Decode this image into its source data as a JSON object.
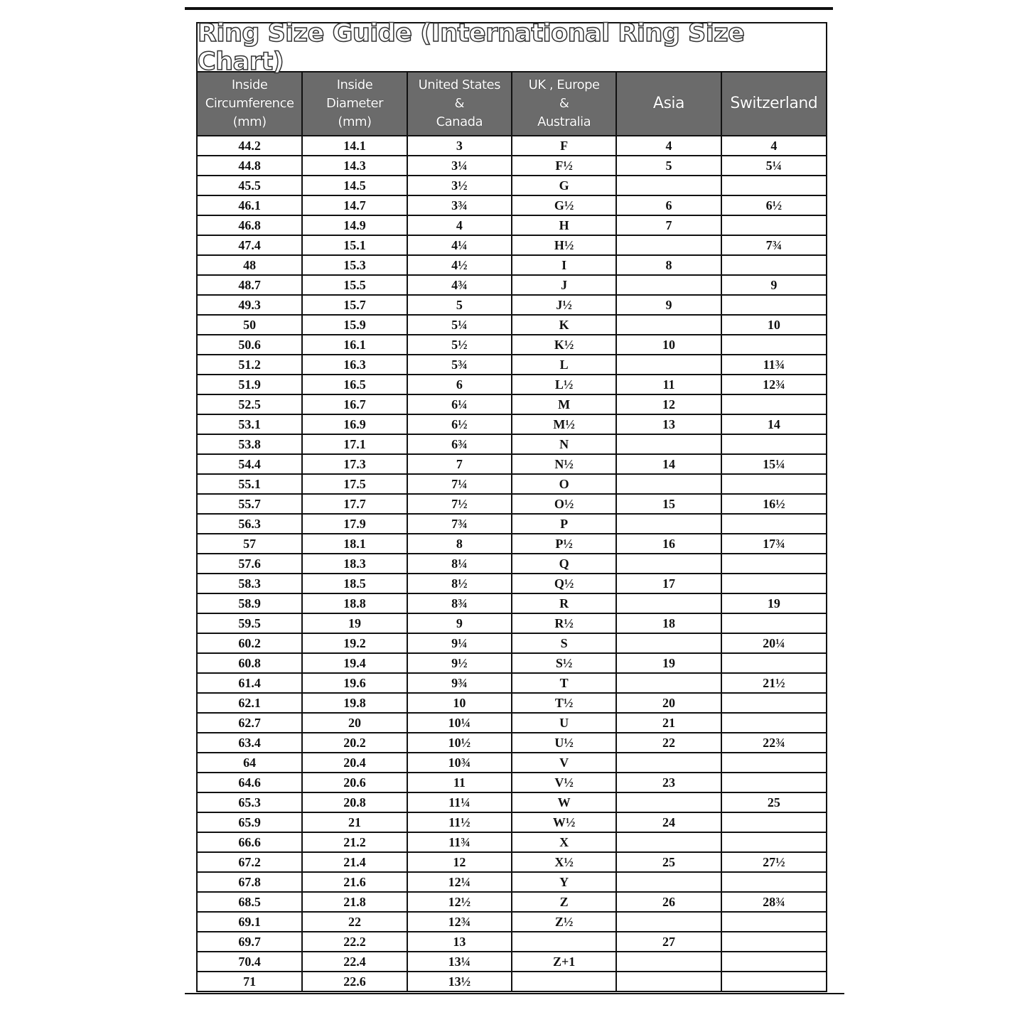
{
  "title": "Ring  Size  Guide (International Ring Size Chart)",
  "columns": [
    [
      "Inside",
      "Circumference",
      "(mm)"
    ],
    [
      "Inside",
      "Diameter",
      "(mm)"
    ],
    [
      "United States",
      "&",
      "Canada"
    ],
    [
      "UK , Europe",
      "&",
      "Australia"
    ],
    [
      "Asia"
    ],
    [
      "Switzerland"
    ]
  ],
  "rows": [
    [
      "44.2",
      "14.1",
      "3",
      "F",
      "4",
      "4"
    ],
    [
      "44.8",
      "14.3",
      "3¼",
      "F½",
      "5",
      "5¼"
    ],
    [
      "45.5",
      "14.5",
      "3½",
      "G",
      "",
      ""
    ],
    [
      "46.1",
      "14.7",
      "3¾",
      "G½",
      "6",
      "6½"
    ],
    [
      "46.8",
      "14.9",
      "4",
      "H",
      "7",
      ""
    ],
    [
      "47.4",
      "15.1",
      "4¼",
      "H½",
      "",
      "7¾"
    ],
    [
      "48",
      "15.3",
      "4½",
      "I",
      "8",
      ""
    ],
    [
      "48.7",
      "15.5",
      "4¾",
      "J",
      "",
      "9"
    ],
    [
      "49.3",
      "15.7",
      "5",
      "J½",
      "9",
      ""
    ],
    [
      "50",
      "15.9",
      "5¼",
      "K",
      "",
      "10"
    ],
    [
      "50.6",
      "16.1",
      "5½",
      "K½",
      "10",
      ""
    ],
    [
      "51.2",
      "16.3",
      "5¾",
      "L",
      "",
      "11¾"
    ],
    [
      "51.9",
      "16.5",
      "6",
      "L½",
      "11",
      "12¾"
    ],
    [
      "52.5",
      "16.7",
      "6¼",
      "M",
      "12",
      ""
    ],
    [
      "53.1",
      "16.9",
      "6½",
      "M½",
      "13",
      "14"
    ],
    [
      "53.8",
      "17.1",
      "6¾",
      "N",
      "",
      ""
    ],
    [
      "54.4",
      "17.3",
      "7",
      "N½",
      "14",
      "15¼"
    ],
    [
      "55.1",
      "17.5",
      "7¼",
      "O",
      "",
      ""
    ],
    [
      "55.7",
      "17.7",
      "7½",
      "O½",
      "15",
      "16½"
    ],
    [
      "56.3",
      "17.9",
      "7¾",
      "P",
      "",
      ""
    ],
    [
      "57",
      "18.1",
      "8",
      "P½",
      "16",
      "17¾"
    ],
    [
      "57.6",
      "18.3",
      "8¼",
      "Q",
      "",
      ""
    ],
    [
      "58.3",
      "18.5",
      "8½",
      "Q½",
      "17",
      ""
    ],
    [
      "58.9",
      "18.8",
      "8¾",
      "R",
      "",
      "19"
    ],
    [
      "59.5",
      "19",
      "9",
      "R½",
      "18",
      ""
    ],
    [
      "60.2",
      "19.2",
      "9¼",
      "S",
      "",
      "20¼"
    ],
    [
      "60.8",
      "19.4",
      "9½",
      "S½",
      "19",
      ""
    ],
    [
      "61.4",
      "19.6",
      "9¾",
      "T",
      "",
      "21½"
    ],
    [
      "62.1",
      "19.8",
      "10",
      "T½",
      "20",
      ""
    ],
    [
      "62.7",
      "20",
      "10¼",
      "U",
      "21",
      ""
    ],
    [
      "63.4",
      "20.2",
      "10½",
      "U½",
      "22",
      "22¾"
    ],
    [
      "64",
      "20.4",
      "10¾",
      "V",
      "",
      ""
    ],
    [
      "64.6",
      "20.6",
      "11",
      "V½",
      "23",
      ""
    ],
    [
      "65.3",
      "20.8",
      "11¼",
      "W",
      "",
      "25"
    ],
    [
      "65.9",
      "21",
      "11½",
      "W½",
      "24",
      ""
    ],
    [
      "66.6",
      "21.2",
      "11¾",
      "X",
      "",
      ""
    ],
    [
      "67.2",
      "21.4",
      "12",
      "X½",
      "25",
      "27½"
    ],
    [
      "67.8",
      "21.6",
      "12¼",
      "Y",
      "",
      ""
    ],
    [
      "68.5",
      "21.8",
      "12½",
      "Z",
      "26",
      "28¾"
    ],
    [
      "69.1",
      "22",
      "12¾",
      "Z½",
      "",
      ""
    ],
    [
      "69.7",
      "22.2",
      "13",
      "",
      "27",
      ""
    ],
    [
      "70.4",
      "22.4",
      "13¼",
      "Z+1",
      "",
      ""
    ],
    [
      "71",
      "22.6",
      "13½",
      "",
      "",
      ""
    ]
  ]
}
